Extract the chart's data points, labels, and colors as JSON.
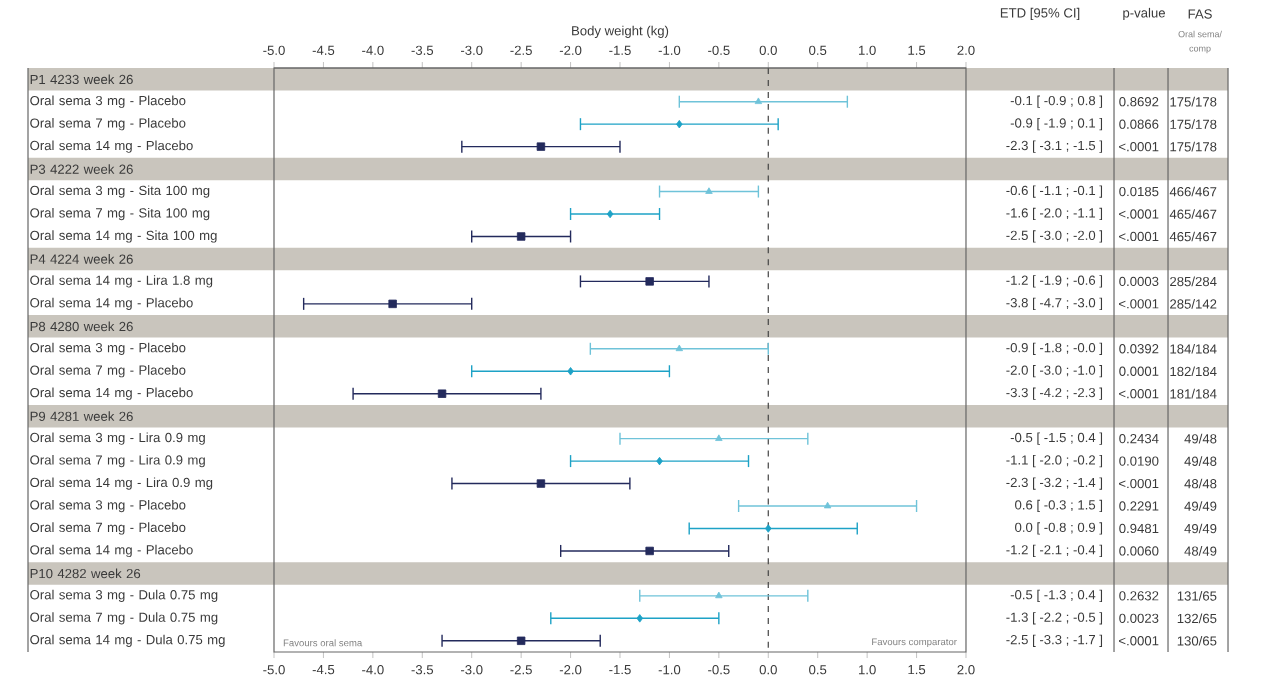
{
  "chart_data": {
    "type": "scatter",
    "orientation": "horizontal",
    "xlabel": "Body weight (kg)",
    "categories": [
      "P1 4233 week 26",
      "Oral sema 3 mg - Placebo",
      "Oral sema 7 mg - Placebo",
      "Oral sema 14 mg - Placebo",
      "P3 4222 week 26",
      "Oral sema 3 mg - Sita 100 mg",
      "Oral sema 7 mg - Sita 100 mg",
      "Oral sema 14 mg - Sita 100 mg",
      "P4 4224 week 26",
      "Oral sema 14 mg - Lira 1.8 mg",
      "Oral sema 14 mg - Placebo",
      "P8 4280 week 26",
      "Oral sema 3 mg - Placebo",
      "Oral sema 7 mg - Placebo",
      "Oral sema 14 mg - Placebo",
      "P9 4281 week 26",
      "Oral sema 3 mg - Lira 0.9 mg",
      "Oral sema 7 mg - Lira 0.9 mg",
      "Oral sema 14 mg - Lira 0.9 mg",
      "Oral sema 3 mg - Placebo",
      "Oral sema 7 mg - Placebo",
      "Oral sema 14 mg - Placebo",
      "P10 4282 week 26",
      "Oral sema 3 mg - Dula 0.75 mg",
      "Oral sema 7 mg - Dula 0.75 mg",
      "Oral sema 14 mg - Dula 0.75 mg"
    ],
    "series": [
      {
        "color": "#6fc3d9",
        "marker": "triangle",
        "values": [
          null,
          -0.1,
          null,
          null,
          null,
          -0.6,
          null,
          null,
          null,
          null,
          null,
          null,
          -0.9,
          null,
          null,
          null,
          -0.5,
          null,
          null,
          0.6,
          null,
          null,
          null,
          -0.5,
          null,
          null
        ],
        "errors": [
          null,
          [
            -0.9,
            0.8
          ],
          null,
          null,
          null,
          [
            -1.1,
            -0.1
          ],
          null,
          null,
          null,
          null,
          null,
          null,
          [
            -1.8,
            0.0
          ],
          null,
          null,
          null,
          [
            -1.5,
            0.4
          ],
          null,
          null,
          [
            -0.3,
            1.5
          ],
          null,
          null,
          null,
          [
            -1.3,
            0.4
          ],
          null,
          null
        ]
      },
      {
        "color": "#1da2c6",
        "marker": "diamond",
        "values": [
          null,
          null,
          -0.9,
          null,
          null,
          null,
          -1.6,
          null,
          null,
          null,
          null,
          null,
          null,
          -2.0,
          null,
          null,
          null,
          -1.1,
          null,
          null,
          0.0,
          null,
          null,
          null,
          -1.3,
          null
        ],
        "errors": [
          null,
          null,
          [
            -1.9,
            0.1
          ],
          null,
          null,
          null,
          [
            -2.0,
            -1.1
          ],
          null,
          null,
          null,
          null,
          null,
          null,
          [
            -3.0,
            -1.0
          ],
          null,
          null,
          null,
          [
            -2.0,
            -0.2
          ],
          null,
          null,
          [
            -0.8,
            0.9
          ],
          null,
          null,
          null,
          [
            -2.2,
            -0.5
          ],
          null
        ]
      },
      {
        "color": "#232a5c",
        "marker": "square",
        "values": [
          null,
          null,
          null,
          -2.3,
          null,
          null,
          null,
          -2.5,
          null,
          -1.2,
          -3.8,
          null,
          null,
          null,
          -3.3,
          null,
          null,
          null,
          -2.3,
          null,
          null,
          -1.2,
          null,
          null,
          null,
          -2.5
        ],
        "errors": [
          null,
          null,
          null,
          [
            -3.1,
            -1.5
          ],
          null,
          null,
          null,
          [
            -3.0,
            -2.0
          ],
          null,
          [
            -1.9,
            -0.6
          ],
          [
            -4.7,
            -3.0
          ],
          null,
          null,
          null,
          [
            -4.2,
            -2.3
          ],
          null,
          null,
          null,
          [
            -3.2,
            -1.4
          ],
          null,
          null,
          [
            -2.1,
            -0.4
          ],
          null,
          null,
          null,
          [
            -3.3,
            -1.7
          ]
        ]
      }
    ],
    "xlim": [
      -5,
      2
    ],
    "xticks": [
      {
        "value": -5,
        "label": "-5.0"
      },
      {
        "value": -4.5,
        "label": "-4.5"
      },
      {
        "value": -4,
        "label": "-4.0"
      },
      {
        "value": -3.5,
        "label": "-3.5"
      },
      {
        "value": -3,
        "label": "-3.0"
      },
      {
        "value": -2.5,
        "label": "-2.5"
      },
      {
        "value": -2,
        "label": "-2.0"
      },
      {
        "value": -1.5,
        "label": "-1.5"
      },
      {
        "value": -1,
        "label": "-1.0"
      },
      {
        "value": -0.5,
        "label": "-0.5"
      },
      {
        "value": 0,
        "label": "0.0"
      },
      {
        "value": 0.5,
        "label": "0.5"
      },
      {
        "value": 1,
        "label": "1.0"
      },
      {
        "value": 1.5,
        "label": "1.5"
      },
      {
        "value": 2,
        "label": "2.0"
      }
    ],
    "x2lim": [
      -5,
      2
    ],
    "x2ticks": [
      {
        "value": -5,
        "label": "-5.0"
      },
      {
        "value": -4.5,
        "label": "-4.5"
      },
      {
        "value": -4,
        "label": "-4.0"
      },
      {
        "value": -3.5,
        "label": "-3.5"
      },
      {
        "value": -3,
        "label": "-3.0"
      },
      {
        "value": -2.5,
        "label": "-2.5"
      },
      {
        "value": -2,
        "label": "-2.0"
      },
      {
        "value": -1.5,
        "label": "-1.5"
      },
      {
        "value": -1,
        "label": "-1.0"
      },
      {
        "value": -0.5,
        "label": "-0.5"
      },
      {
        "value": 0,
        "label": "0.0"
      },
      {
        "value": 0.5,
        "label": "0.5"
      },
      {
        "value": 1,
        "label": "1.0"
      },
      {
        "value": 1.5,
        "label": "1.5"
      },
      {
        "value": 2,
        "label": "2.0"
      }
    ],
    "ref_lines": [
      {
        "axis": "x",
        "value": 0,
        "line_style": "dashed",
        "color": "#444444"
      }
    ],
    "annotations": [
      "ETD [95% CI]",
      "p-value",
      "FAS",
      "Oral sema/",
      "comp",
      "Favours oral sema",
      "Favours comparator",
      "-0.1 [ -0.9 ; 0.8 ]",
      "0.8692",
      "175/178",
      "-0.9 [ -1.9 ; 0.1 ]",
      "0.0866",
      "175/178",
      "-2.3 [ -3.1 ; -1.5 ]",
      "<.0001",
      "175/178",
      "-0.6 [ -1.1 ; -0.1 ]",
      "0.0185",
      "466/467",
      "-1.6 [ -2.0 ; -1.1 ]",
      "<.0001",
      "465/467",
      "-2.5 [ -3.0 ; -2.0 ]",
      "<.0001",
      "465/467",
      "-1.2 [ -1.9 ; -0.6 ]",
      "0.0003",
      "285/284",
      "-3.8 [ -4.7 ; -3.0 ]",
      "<.0001",
      "285/142",
      "-0.9 [ -1.8 ; -0.0 ]",
      "0.0392",
      "184/184",
      "-2.0 [ -3.0 ; -1.0 ]",
      "0.0001",
      "182/184",
      "-3.3 [ -4.2 ; -2.3 ]",
      "<.0001",
      "181/184",
      "-0.5 [ -1.5 ; 0.4 ]",
      "0.2434",
      "49/48",
      "-1.1 [ -2.0 ; -0.2 ]",
      "0.0190",
      "49/48",
      "-2.3 [ -3.2 ; -1.4 ]",
      "<.0001",
      "48/48",
      "0.6 [ -0.3 ; 1.5 ]",
      "0.2291",
      "49/49",
      "0.0 [ -0.8 ; 0.9 ]",
      "0.9481",
      "49/49",
      "-1.2 [ -2.1 ; -0.4 ]",
      "0.0060",
      "48/49",
      "-0.5 [ -1.3 ; 0.4 ]",
      "0.2632",
      "131/65",
      "-1.3 [ -2.2 ; -0.5 ]",
      "0.0023",
      "132/65",
      "-2.5 [ -3.3 ; -1.7 ]",
      "<.0001",
      "130/65"
    ]
  }
}
